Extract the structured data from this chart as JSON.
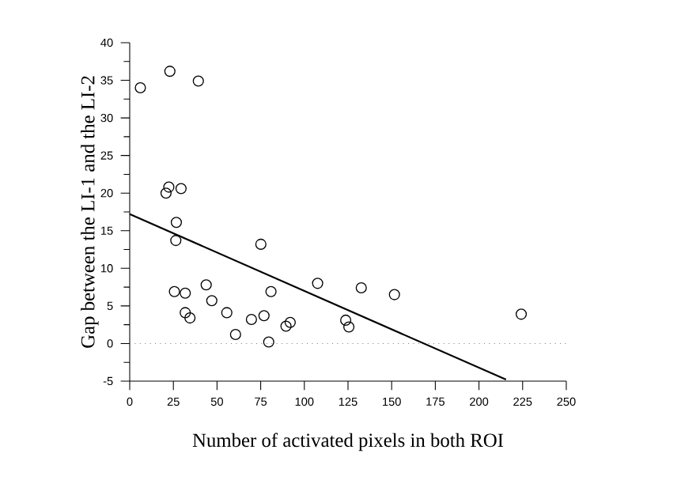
{
  "chart_data": {
    "type": "scatter",
    "xlabel": "Number of activated pixels in both ROI",
    "ylabel": "Gap between the LI-1  and the LI-2",
    "xlim": [
      0,
      250
    ],
    "ylim": [
      -5,
      40
    ],
    "xticks": [
      0,
      25,
      50,
      75,
      100,
      125,
      150,
      175,
      200,
      225,
      250
    ],
    "yticks": [
      -5,
      0,
      5,
      10,
      15,
      20,
      25,
      30,
      35,
      40
    ],
    "grid": false,
    "marker": "circle",
    "ref_lines": [
      {
        "axis": "y",
        "value": 0,
        "color": "#808080",
        "line_style": "dotted"
      }
    ],
    "series": [
      {
        "color": "#000000",
        "x": [
          6.1,
          23.0,
          39.3,
          22.4,
          20.8,
          29.4,
          26.7,
          26.4,
          25.6,
          31.8,
          31.8,
          34.5,
          43.8,
          47.0,
          55.6,
          60.6,
          69.7,
          75.1,
          76.9,
          79.6,
          80.9,
          89.5,
          91.9,
          107.6,
          123.7,
          125.5,
          132.6,
          151.6,
          224.2
        ],
        "values": [
          34.0,
          36.2,
          34.9,
          20.8,
          20.0,
          20.6,
          16.1,
          13.7,
          6.9,
          6.7,
          4.1,
          3.4,
          7.8,
          5.7,
          4.1,
          1.2,
          3.2,
          13.2,
          3.7,
          0.2,
          6.9,
          2.3,
          2.8,
          8.0,
          3.1,
          2.2,
          7.4,
          6.5,
          3.9
        ]
      },
      {
        "type": "line",
        "color": "#000000",
        "marker": "none",
        "line_style": "solid",
        "x": [
          0,
          215.5
        ],
        "values": [
          17.2,
          -4.8
        ]
      }
    ]
  }
}
